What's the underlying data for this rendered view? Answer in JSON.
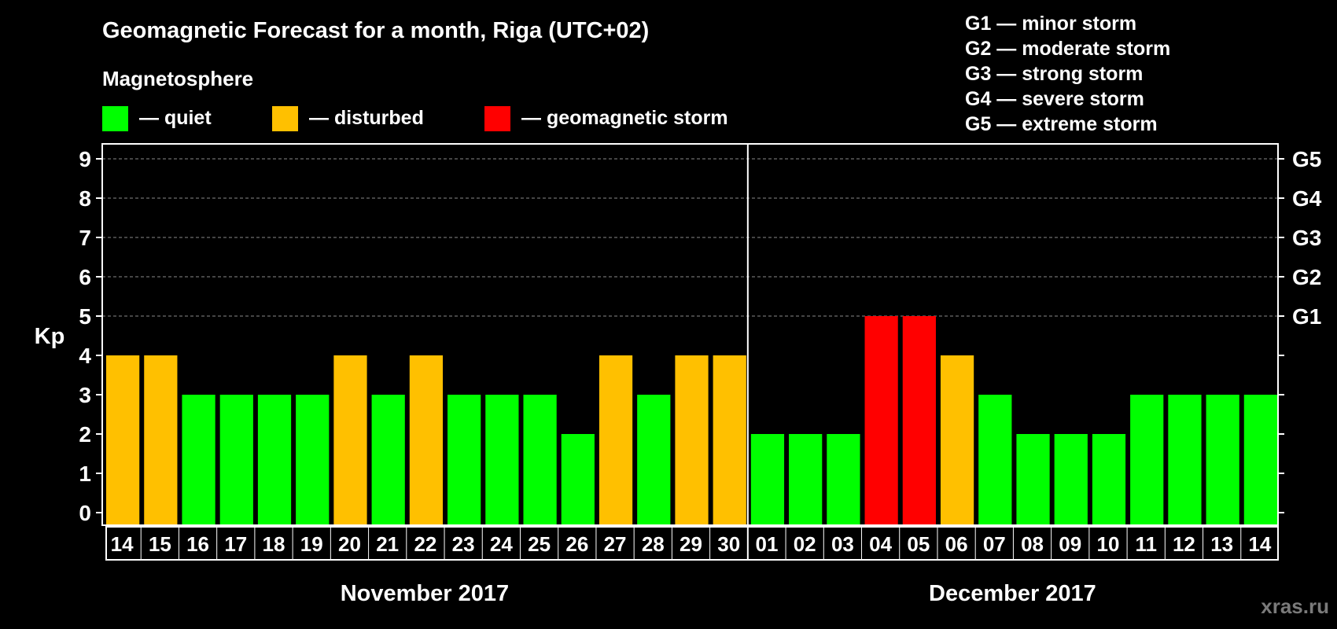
{
  "chart_data": {
    "type": "bar",
    "title": "Geomagnetic Forecast for a month, Riga (UTC+02)",
    "ylabel": "Kp",
    "ylim": [
      0,
      9
    ],
    "yticks": [
      0,
      1,
      2,
      3,
      4,
      5,
      6,
      7,
      8,
      9
    ],
    "grid": true,
    "g_scale": [
      {
        "kp": 5,
        "label": "G1"
      },
      {
        "kp": 6,
        "label": "G2"
      },
      {
        "kp": 7,
        "label": "G3"
      },
      {
        "kp": 8,
        "label": "G4"
      },
      {
        "kp": 9,
        "label": "G5"
      }
    ],
    "magnetosphere_legend": {
      "heading": "Magnetosphere",
      "items": [
        {
          "label": "— quiet",
          "color": "#00ff00"
        },
        {
          "label": "— disturbed",
          "color": "#ffc000"
        },
        {
          "label": "— geomagnetic storm",
          "color": "#ff0000"
        }
      ]
    },
    "storm_legend": [
      "G1 — minor storm",
      "G2 — moderate storm",
      "G3 — strong storm",
      "G4 — severe storm",
      "G5 — extreme storm"
    ],
    "months": [
      {
        "label": "November 2017",
        "start": 0,
        "count": 17
      },
      {
        "label": "December 2017",
        "start": 17,
        "count": 14
      }
    ],
    "categories": [
      "14",
      "15",
      "16",
      "17",
      "18",
      "19",
      "20",
      "21",
      "22",
      "23",
      "24",
      "25",
      "26",
      "27",
      "28",
      "29",
      "30",
      "01",
      "02",
      "03",
      "04",
      "05",
      "06",
      "07",
      "08",
      "09",
      "10",
      "11",
      "12",
      "13",
      "14"
    ],
    "values": [
      4,
      4,
      3,
      3,
      3,
      3,
      4,
      3,
      4,
      3,
      3,
      3,
      2,
      4,
      3,
      4,
      4,
      2,
      2,
      2,
      5,
      5,
      4,
      3,
      2,
      2,
      2,
      3,
      3,
      3,
      3
    ],
    "colors": {
      "quiet": "#00ff00",
      "disturbed": "#ffc000",
      "storm": "#ff0000"
    }
  },
  "watermark": "xras.ru"
}
